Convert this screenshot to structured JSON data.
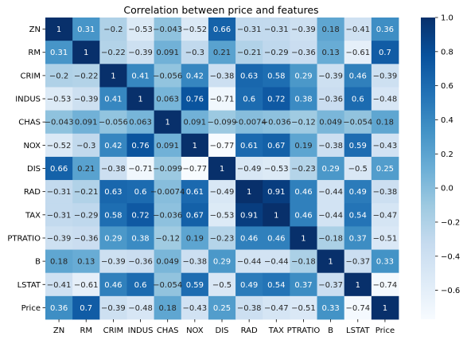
{
  "chart_data": {
    "type": "heatmap",
    "title": "Correlation between price and features",
    "xlabel": "",
    "ylabel": "",
    "labels": [
      "ZN",
      "RM",
      "CRIM",
      "INDUS",
      "CHAS",
      "NOX",
      "DIS",
      "RAD",
      "TAX",
      "PTRATIO",
      "B",
      "LSTAT",
      "Price"
    ],
    "values": [
      [
        1,
        0.31,
        -0.2,
        -0.53,
        -0.043,
        -0.52,
        0.66,
        -0.31,
        -0.31,
        -0.39,
        0.18,
        -0.41,
        0.36
      ],
      [
        0.31,
        1,
        -0.22,
        -0.39,
        0.091,
        -0.3,
        0.21,
        -0.21,
        -0.29,
        -0.36,
        0.13,
        -0.61,
        0.7
      ],
      [
        -0.2,
        -0.22,
        1,
        0.41,
        -0.056,
        0.42,
        -0.38,
        0.63,
        0.58,
        0.29,
        -0.39,
        0.46,
        -0.39
      ],
      [
        -0.53,
        -0.39,
        0.41,
        1,
        0.063,
        0.76,
        -0.71,
        0.6,
        0.72,
        0.38,
        -0.36,
        0.6,
        -0.48
      ],
      [
        -0.043,
        0.091,
        -0.056,
        0.063,
        1,
        0.091,
        -0.099,
        -0.0074,
        -0.036,
        -0.12,
        0.049,
        -0.054,
        0.18
      ],
      [
        -0.52,
        -0.3,
        0.42,
        0.76,
        0.091,
        1,
        -0.77,
        0.61,
        0.67,
        0.19,
        -0.38,
        0.59,
        -0.43
      ],
      [
        0.66,
        0.21,
        -0.38,
        -0.71,
        -0.099,
        -0.77,
        1,
        -0.49,
        -0.53,
        -0.23,
        0.29,
        -0.5,
        0.25
      ],
      [
        -0.31,
        -0.21,
        0.63,
        0.6,
        -0.0074,
        0.61,
        -0.49,
        1,
        0.91,
        0.46,
        -0.44,
        0.49,
        -0.38
      ],
      [
        -0.31,
        -0.29,
        0.58,
        0.72,
        -0.036,
        0.67,
        -0.53,
        0.91,
        1,
        0.46,
        -0.44,
        0.54,
        -0.47
      ],
      [
        -0.39,
        -0.36,
        0.29,
        0.38,
        -0.12,
        0.19,
        -0.23,
        0.46,
        0.46,
        1,
        -0.18,
        0.37,
        -0.51
      ],
      [
        0.18,
        0.13,
        -0.39,
        -0.36,
        0.049,
        -0.38,
        0.29,
        -0.44,
        -0.44,
        -0.18,
        1,
        -0.37,
        0.33
      ],
      [
        -0.41,
        -0.61,
        0.46,
        0.6,
        -0.054,
        0.59,
        -0.5,
        0.49,
        0.54,
        0.37,
        -0.37,
        1,
        -0.74
      ],
      [
        0.36,
        0.7,
        -0.39,
        -0.48,
        0.18,
        -0.43,
        0.25,
        -0.38,
        -0.47,
        -0.51,
        0.33,
        -0.74,
        1
      ]
    ],
    "colormap": "Blues",
    "colorbar": {
      "range": [
        -0.77,
        1
      ],
      "ticks": [
        "1.0",
        "0.8",
        "0.6",
        "0.4",
        "0.2",
        "0.0",
        "−0.2",
        "−0.4",
        "−0.6"
      ]
    }
  }
}
